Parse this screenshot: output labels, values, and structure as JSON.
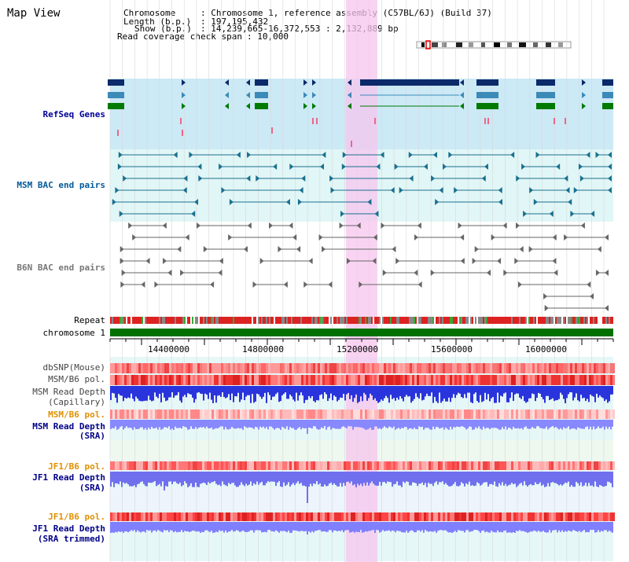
{
  "view_title": "Map View",
  "header": {
    "chromosome_key": "Chromosome",
    "chromosome_val": ": Chromosome 1, reference assembly (C57BL/6J) (Build 37)",
    "length_key": "Length (b.p.)",
    "length_val": ": 197,195,432",
    "show_key": "Show (b.p.)",
    "show_val": ": 14,239,665-16,372,553 : 2,132,889 bp",
    "coverage_key": "Read coverage check span",
    "coverage_val": ": 10,000"
  },
  "tracks": {
    "refseq": "RefSeq Genes",
    "msm_bac": "MSM BAC end pairs",
    "b6n_bac": "B6N BAC end pairs",
    "repeat": "Repeat",
    "chromosome": "chromosome 1",
    "dbsnp": "dbSNP(Mouse)",
    "msm_b6_pol_1": "MSM/B6 pol.",
    "msm_read_depth_cap_1": "MSM Read Depth",
    "msm_read_depth_cap_2": "(Capillary)",
    "msm_b6_pol_2": "MSM/B6 pol.",
    "msm_read_depth_sra_1": "MSM Read Depth",
    "msm_read_depth_sra_2": "(SRA)",
    "jf1_b6_pol_1": "JF1/B6 pol.",
    "jf1_read_depth_sra_1": "JF1 Read Depth",
    "jf1_read_depth_sra_2": "(SRA)",
    "jf1_b6_pol_2": "JF1/B6 pol.",
    "jf1_read_depth_trim_1": "JF1 Read Depth",
    "jf1_read_depth_trim_2": "(SRA trimmed)"
  },
  "axis": {
    "ticks": [
      "14400000",
      "14800000",
      "15200000",
      "15600000",
      "16000000"
    ]
  },
  "colors": {
    "refseq_bg": "#cce9f6",
    "bac_bg": "#e1f6f6",
    "highlight": "#f6c6ee",
    "refseq_navy": "#0a2a6a",
    "refseq_blue": "#3b8ab8",
    "refseq_green": "#007a00",
    "msm_bac": "#1a7090",
    "b6n_bac": "#666666",
    "chromosome_bar": "#007000",
    "msm_label": "#005a9c",
    "refseq_label": "#000099",
    "orange_label": "#e09000",
    "navy_label": "#000088"
  }
}
